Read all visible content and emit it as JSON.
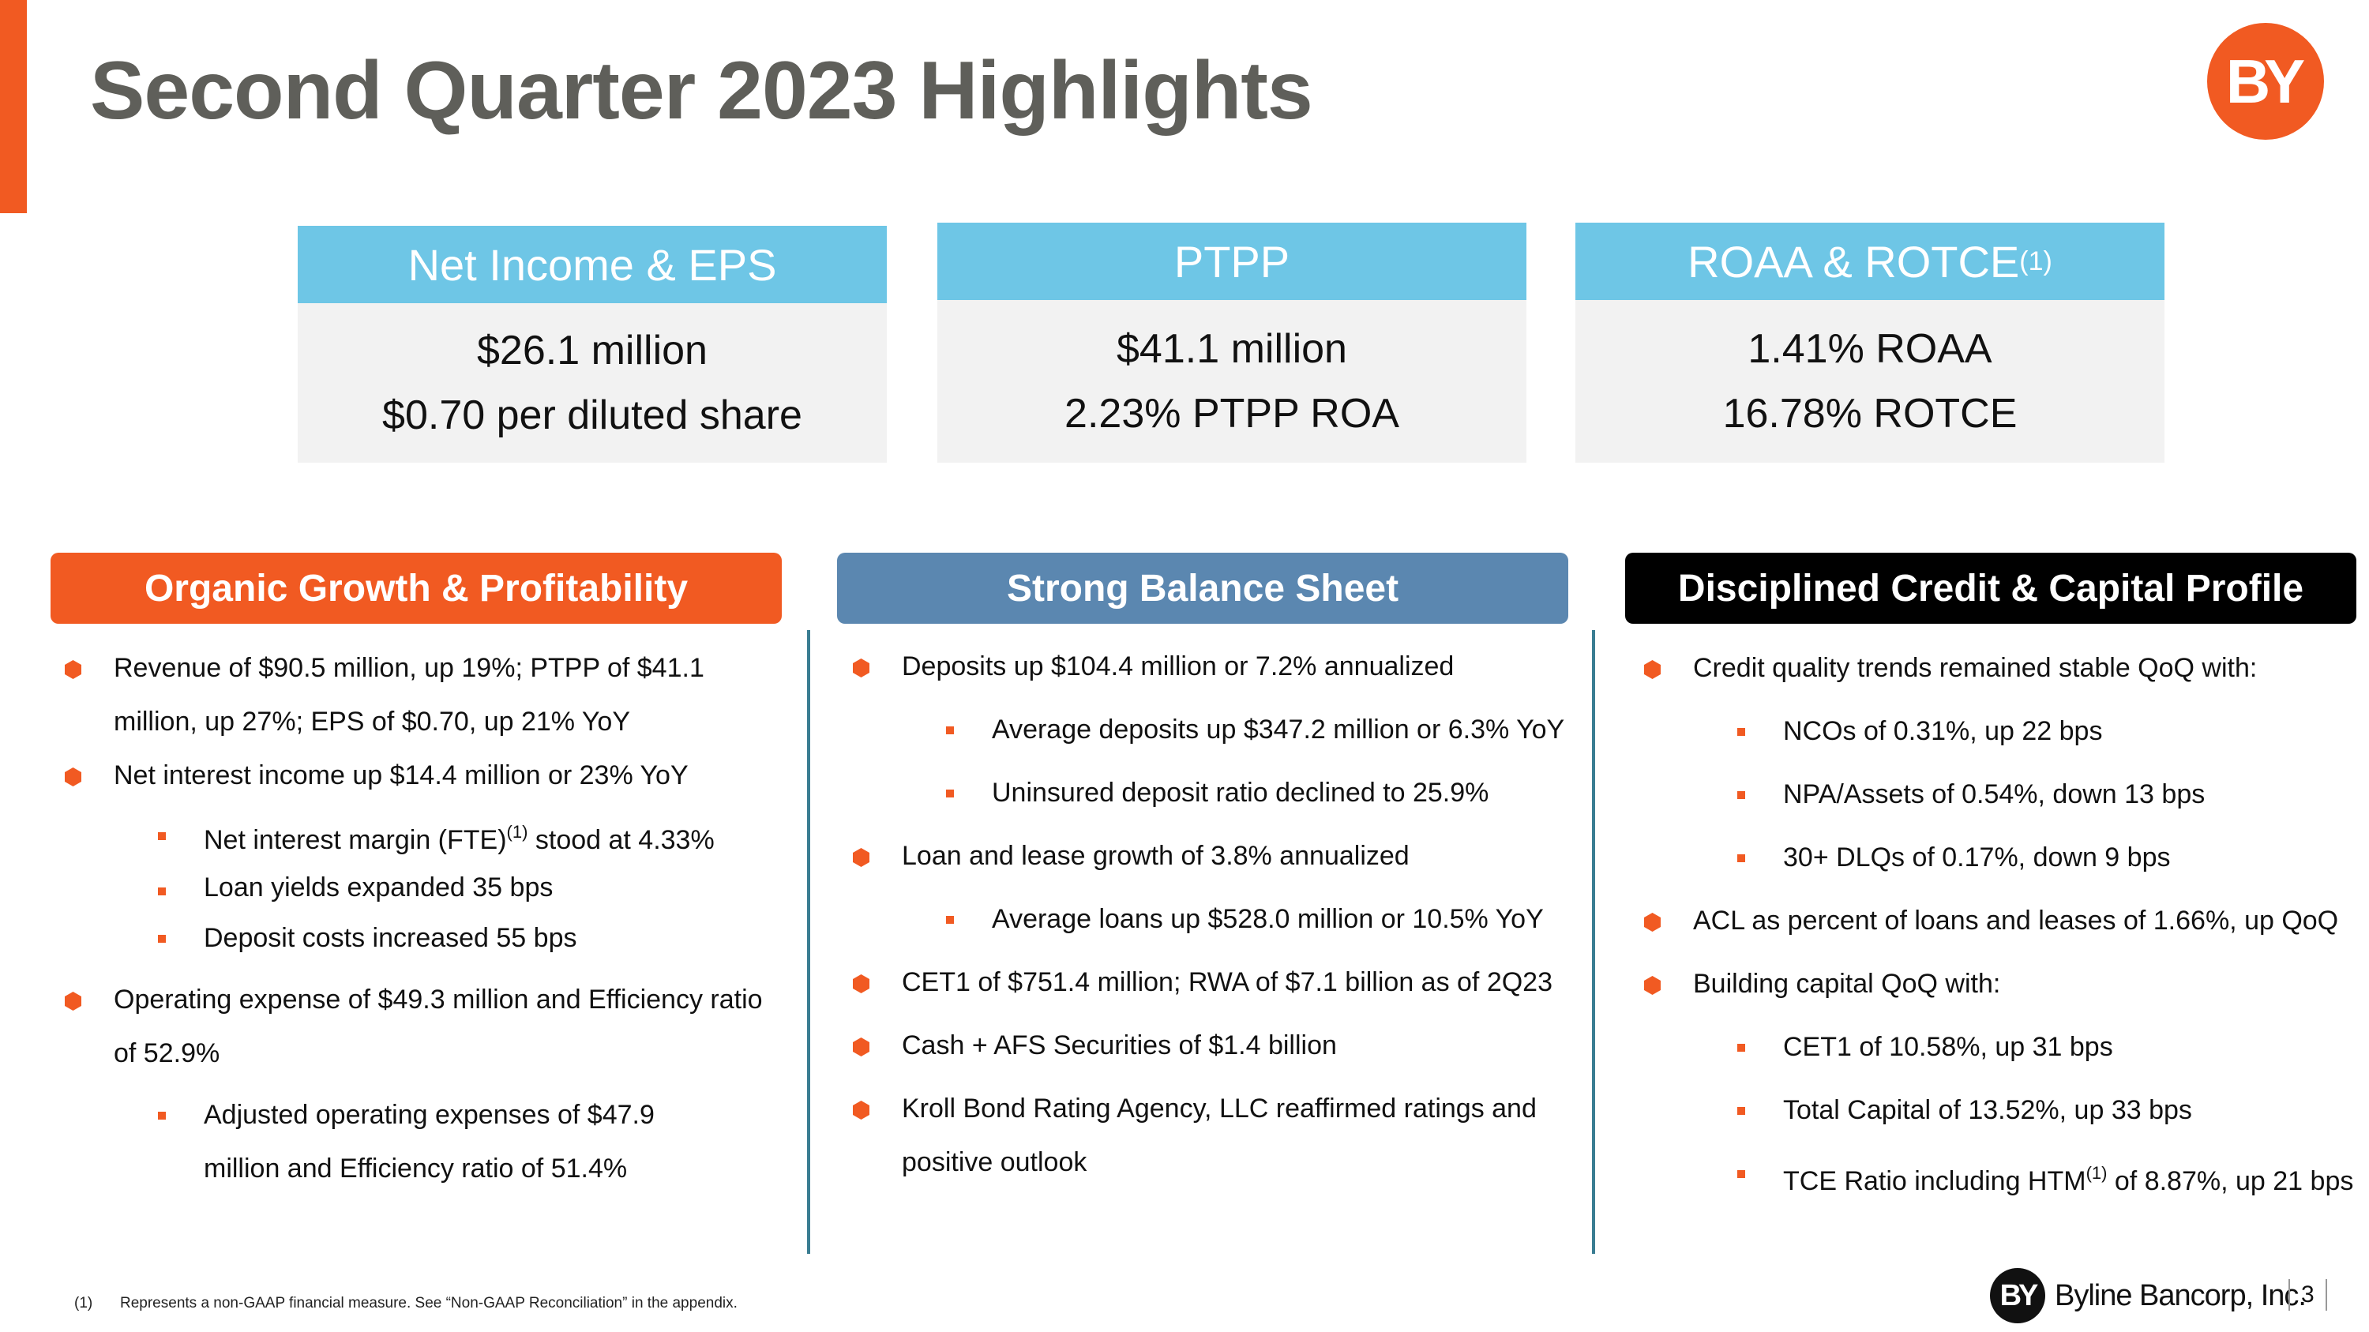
{
  "header": {
    "title": "Second Quarter 2023 Highlights",
    "logo_text": "BY"
  },
  "kpis": [
    {
      "title": "Net Income & EPS",
      "sup": "",
      "line1": "$26.1 million",
      "line2": "$0.70 per diluted share"
    },
    {
      "title": "PTPP",
      "sup": "",
      "line1": "$41.1 million",
      "line2": "2.23% PTPP ROA"
    },
    {
      "title": "ROAA & ROTCE",
      "sup": "(1)",
      "line1": "1.41% ROAA",
      "line2": "16.78% ROTCE"
    }
  ],
  "sections": {
    "growth": {
      "title": "Organic Growth & Profitability",
      "color": "#f15a22",
      "b1": "Revenue of $90.5 million, up 19%; PTPP of $41.1 million, up 27%; EPS of $0.70, up 21% YoY",
      "b2": "Net interest income up $14.4 million or 23% YoY",
      "b2_s1_pre": "Net interest margin (FTE)",
      "b2_s1_sup": "(1)",
      "b2_s1_post": " stood at 4.33%",
      "b2_s2": "Loan yields expanded 35 bps",
      "b2_s3": "Deposit costs increased 55 bps",
      "b3": "Operating expense of $49.3 million and Efficiency ratio of 52.9%",
      "b3_s1": "Adjusted operating expenses of $47.9 million and Efficiency ratio of 51.4%"
    },
    "balance": {
      "title": "Strong Balance Sheet",
      "color": "#5b87b0",
      "b1": "Deposits up $104.4 million or 7.2% annualized",
      "b1_s1": "Average deposits up $347.2 million or 6.3% YoY",
      "b1_s2": "Uninsured deposit ratio declined to 25.9%",
      "b2": "Loan and lease growth of 3.8% annualized",
      "b2_s1": "Average loans up $528.0 million or 10.5% YoY",
      "b3": "CET1 of $751.4 million; RWA of $7.1 billion as of 2Q23",
      "b4": "Cash + AFS Securities of $1.4 billion",
      "b5": "Kroll Bond Rating Agency, LLC reaffirmed ratings and positive outlook"
    },
    "credit": {
      "title": "Disciplined Credit & Capital Profile",
      "color": "#000000",
      "b1": "Credit quality trends remained stable QoQ with:",
      "b1_s1": "NCOs of 0.31%, up 22 bps",
      "b1_s2": "NPA/Assets of 0.54%, down 13 bps",
      "b1_s3": "30+ DLQs of 0.17%, down 9 bps",
      "b2": "ACL as percent of loans and leases of 1.66%, up QoQ",
      "b3": "Building capital QoQ with:",
      "b3_s1": "CET1 of 10.58%, up 31 bps",
      "b3_s2": "Total Capital of 13.52%, up 33 bps",
      "b3_s3_pre": "TCE Ratio including HTM",
      "b3_s3_sup": "(1)",
      "b3_s3_post": " of 8.87%, up 21 bps"
    }
  },
  "footer": {
    "note_num": "(1)",
    "note_text": "Represents a non-GAAP financial measure.  See “Non-GAAP Reconciliation” in the appendix.",
    "brand_logo": "BY",
    "brand_name": "Byline Bancorp, Inc.",
    "page_number": "3"
  }
}
